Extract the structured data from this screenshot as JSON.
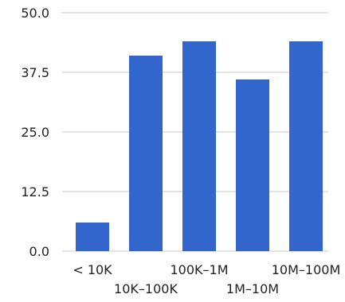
{
  "chart_data": {
    "type": "bar",
    "categories": [
      "< 10K",
      "10K–100K",
      "100K–1M",
      "1M–10M",
      "10M–100M"
    ],
    "series": [
      {
        "values": [
          6,
          41,
          44,
          36,
          44
        ]
      }
    ],
    "ylim": [
      0,
      50
    ],
    "yticks": [
      "0.0",
      "12.5",
      "25.0",
      "37.5",
      "50.0"
    ],
    "ytick_values": [
      0,
      12.5,
      25,
      37.5,
      50
    ],
    "grid": true,
    "legend": "none",
    "title": "",
    "xlabel": "",
    "ylabel": "",
    "colors": {
      "bar": "#3366CC",
      "grid": "#C9C9C9",
      "text": "#222222"
    }
  }
}
